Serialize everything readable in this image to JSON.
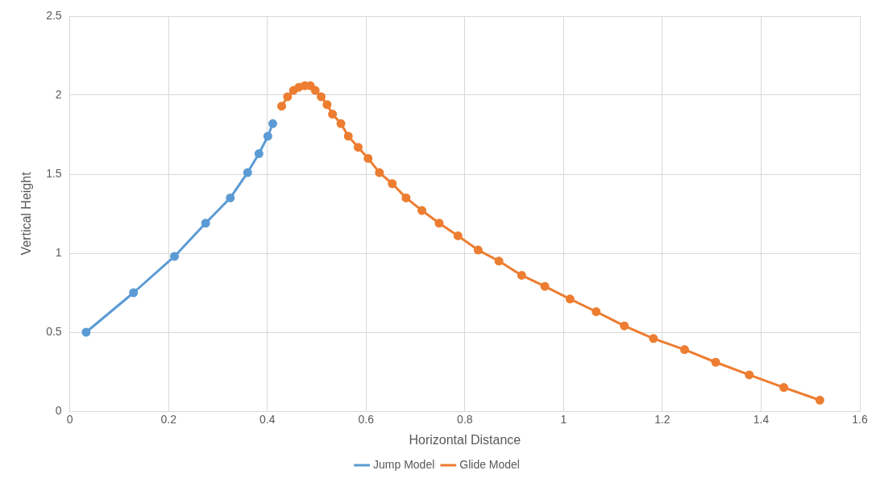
{
  "chart_data": {
    "type": "line",
    "xlabel": "Horizontal Distance",
    "ylabel": "Vertical Height",
    "xlim": [
      0,
      1.6
    ],
    "xticks": [
      0,
      0.2,
      0.4,
      0.6,
      0.8,
      1,
      1.2,
      1.4,
      1.6
    ],
    "ylim": [
      0,
      2.5
    ],
    "yticks": [
      0,
      0.5,
      1,
      1.5,
      2,
      2.5
    ],
    "grid": true,
    "legend": "bottom",
    "marker": "circle",
    "line_style": "solid",
    "series": [
      {
        "name": "Jump Model",
        "color": "#5b9bd5",
        "x": [
          0.033,
          0.129,
          0.212,
          0.275,
          0.325,
          0.36,
          0.383,
          0.401,
          0.411
        ],
        "values": [
          0.5,
          0.75,
          0.98,
          1.19,
          1.35,
          1.51,
          1.63,
          1.74,
          1.82
        ]
      },
      {
        "name": "Glide Model",
        "color": "#ed7d31",
        "x": [
          0.429,
          0.441,
          0.453,
          0.464,
          0.476,
          0.487,
          0.497,
          0.509,
          0.521,
          0.532,
          0.549,
          0.564,
          0.584,
          0.604,
          0.627,
          0.653,
          0.681,
          0.713,
          0.748,
          0.786,
          0.827,
          0.869,
          0.915,
          0.962,
          1.013,
          1.066,
          1.123,
          1.182,
          1.245,
          1.308,
          1.376,
          1.446,
          1.519
        ],
        "values": [
          1.93,
          1.99,
          2.03,
          2.05,
          2.06,
          2.06,
          2.03,
          1.99,
          1.94,
          1.88,
          1.82,
          1.74,
          1.67,
          1.6,
          1.51,
          1.44,
          1.35,
          1.27,
          1.19,
          1.11,
          1.02,
          0.95,
          0.86,
          0.79,
          0.71,
          0.63,
          0.54,
          0.46,
          0.39,
          0.31,
          0.23,
          0.15,
          0.07
        ]
      }
    ]
  }
}
